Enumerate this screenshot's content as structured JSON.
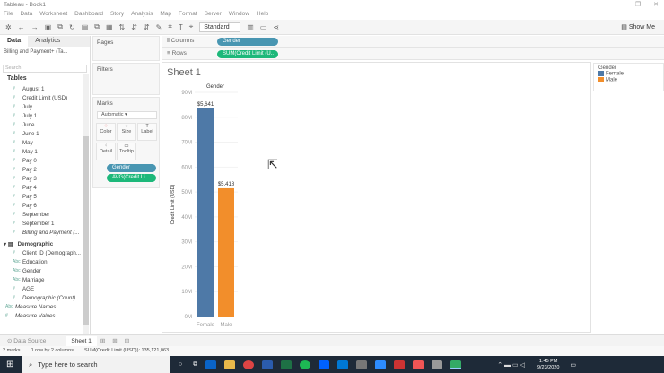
{
  "window": {
    "title": "Tableau - Book1",
    "controls": [
      "—",
      "❐",
      "✕"
    ]
  },
  "menu": [
    "File",
    "Data",
    "Worksheet",
    "Dashboard",
    "Story",
    "Analysis",
    "Map",
    "Format",
    "Server",
    "Window",
    "Help"
  ],
  "toolbar": {
    "fit": "Standard",
    "show_me": "Show Me"
  },
  "left_pane": {
    "tabs": [
      "Data",
      "Analytics"
    ],
    "datasource": "Billing and Payment+ (Ta...",
    "search_placeholder": "Search",
    "tables_header": "Tables",
    "fields": [
      "August 1",
      "Credit Limit (USD)",
      "July",
      "July 1",
      "June",
      "June 1",
      "May",
      "May 1",
      "Pay 0",
      "Pay 2",
      "Pay 3",
      "Pay 4",
      "Pay 5",
      "Pay 6",
      "September",
      "September 1",
      "Billing and Payment (..."
    ],
    "group": "Demographic",
    "group_fields": [
      {
        "n": "Client ID (Demograph...",
        "t": "#"
      },
      {
        "n": "Education",
        "t": "Abc"
      },
      {
        "n": "Gender",
        "t": "Abc"
      },
      {
        "n": "Marriage",
        "t": "Abc"
      },
      {
        "n": "AGE",
        "t": "#"
      },
      {
        "n": "Demographic (Count)",
        "t": "#"
      }
    ],
    "extra": [
      "Measure Names",
      "Measure Values"
    ]
  },
  "cards": {
    "pages": "Pages",
    "filters": "Filters",
    "marks": "Marks",
    "mark_type": "Automatic",
    "buttons": [
      "Color",
      "Size",
      "Label",
      "Detail",
      "Tooltip"
    ],
    "pills": [
      "Gender",
      "AVG(Credit Li.."
    ]
  },
  "shelves": {
    "columns_label": "Columns",
    "columns_pill": "Gender",
    "rows_label": "Rows",
    "rows_pill": "SUM(Credit Limit (U.."
  },
  "sheet": {
    "title": "Sheet 1"
  },
  "chart_data": {
    "type": "bar",
    "title": "",
    "header": "Gender",
    "categories": [
      "Female",
      "Male"
    ],
    "values": [
      83600000,
      51500000
    ],
    "data_labels": [
      "$5,641",
      "$5,418"
    ],
    "colors": [
      "#4e79a7",
      "#f28e2b"
    ],
    "ylabel": "Credit Limit (USD)",
    "ylim": [
      0,
      90000000
    ],
    "yticks": [
      "0M",
      "10M",
      "20M",
      "30M",
      "40M",
      "50M",
      "60M",
      "70M",
      "80M",
      "90M"
    ],
    "grid": true
  },
  "legend": {
    "title": "Gender",
    "items": [
      {
        "label": "Female",
        "color": "#4e79a7"
      },
      {
        "label": "Male",
        "color": "#f28e2b"
      }
    ]
  },
  "bottom_tabs": {
    "data_source": "Data Source",
    "sheet": "Sheet 1"
  },
  "status": {
    "marks": "2 marks",
    "dims": "1 row by 2 columns",
    "sum": "SUM(Credit Limit (USD)): 135,121,063"
  },
  "taskbar": {
    "search_placeholder": "Type here to search",
    "time": "1:45 PM",
    "date": "9/23/2020"
  }
}
